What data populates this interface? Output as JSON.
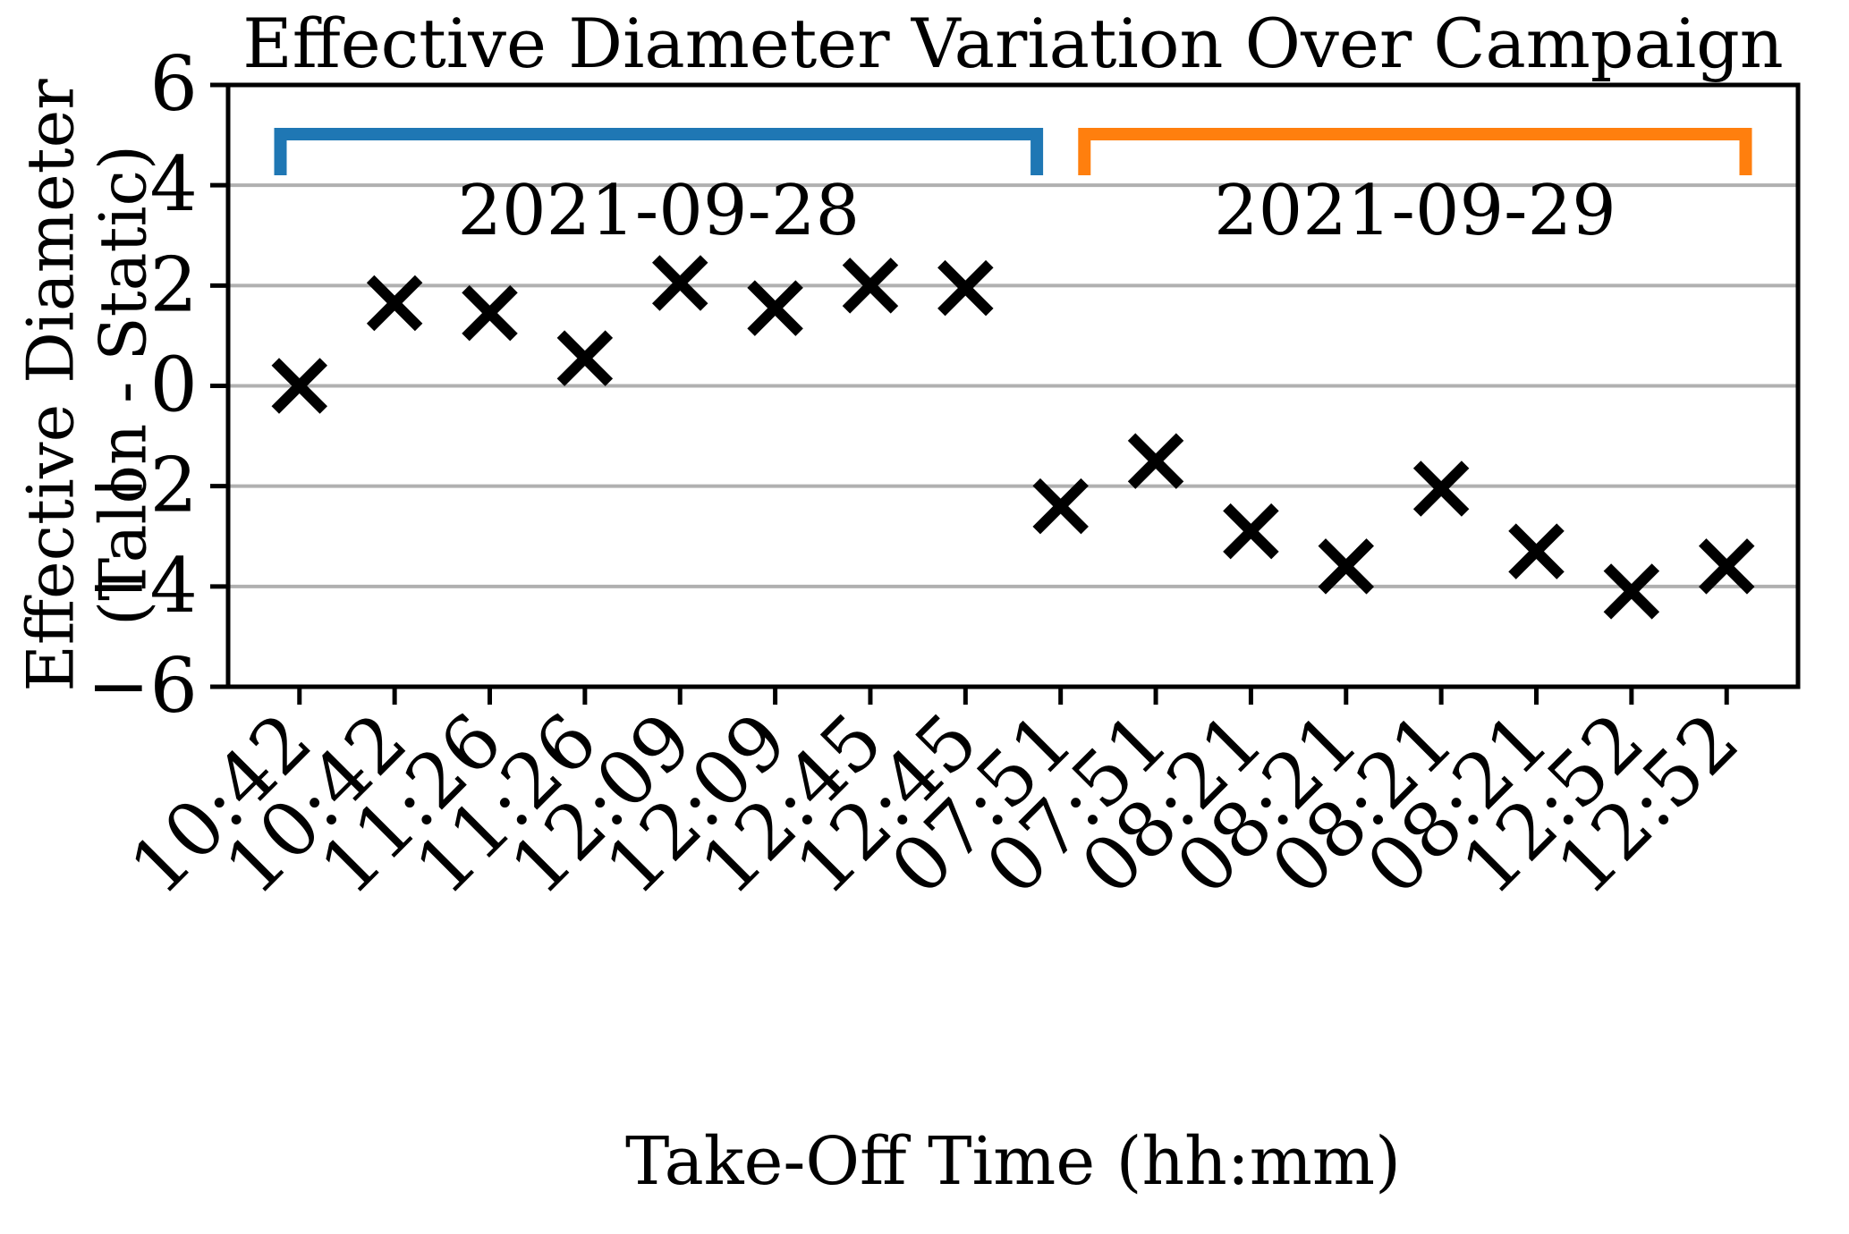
{
  "chart_data": {
    "type": "scatter",
    "title": "Effective Diameter Variation Over Campaign",
    "xlabel": "Take-Off Time (hh:mm)",
    "ylabel_line1": "Effective Diameter",
    "ylabel_line2": "(Talon - Static)",
    "ylim": [
      -6,
      6
    ],
    "yticks": [
      6,
      4,
      2,
      0,
      -2,
      -4,
      -6
    ],
    "gridline_values": [
      4,
      2,
      0,
      -2,
      -4
    ],
    "grid_on": true,
    "grid_color": "#b0b0b0",
    "axis_color": "#000000",
    "marker": "x",
    "marker_color": "#000000",
    "categories": [
      "10:42",
      "10:42",
      "11:26",
      "11:26",
      "12:09",
      "12:09",
      "12:45",
      "12:45",
      "07:51",
      "07:51",
      "08:21",
      "08:21",
      "08:21",
      "08:21",
      "12:52",
      "12:52"
    ],
    "values": [
      0.0,
      1.65,
      1.45,
      0.55,
      2.05,
      1.55,
      2.0,
      1.95,
      -2.4,
      -1.5,
      -2.9,
      -3.6,
      -2.05,
      -3.3,
      -4.1,
      -3.6
    ],
    "groups": [
      {
        "label": "2021-09-28",
        "color": "#1f77b4",
        "start_index": 0,
        "end_index": 7,
        "x_start": -0.2,
        "x_end": 7.75
      },
      {
        "label": "2021-09-29",
        "color": "#ff7f0e",
        "start_index": 8,
        "end_index": 15,
        "x_start": 8.25,
        "x_end": 15.2
      }
    ]
  }
}
